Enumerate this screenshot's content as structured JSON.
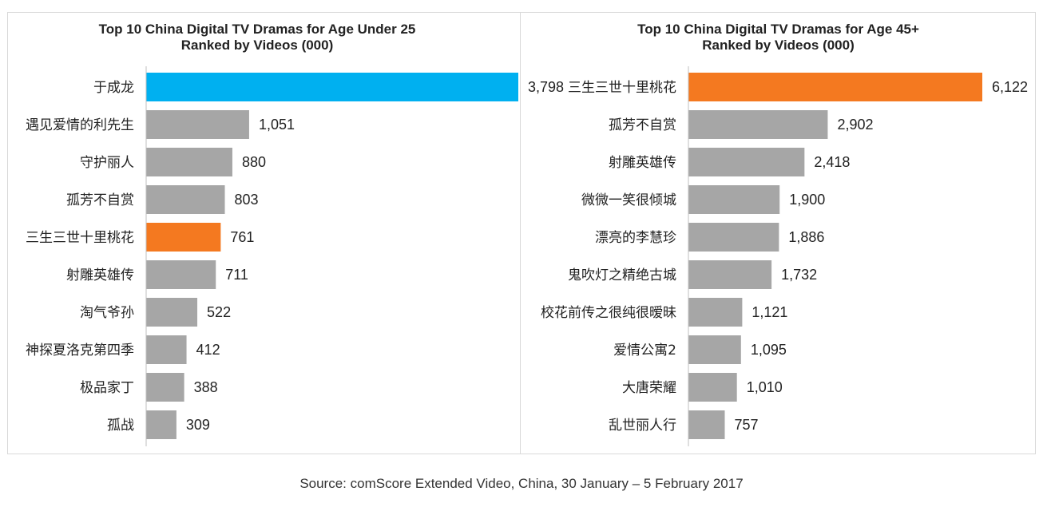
{
  "colors": {
    "highlight_blue": "#00b0f0",
    "highlight_orange": "#f47920",
    "default_bar": "#a6a6a6",
    "axis": "#bfbfbf"
  },
  "source": "Source: comScore Extended Video, China,  30 January – 5 February 2017",
  "chart_data": [
    {
      "type": "bar",
      "orientation": "horizontal",
      "title": "Top 10 China Digital TV Dramas for Age Under 25",
      "subtitle": "Ranked by Videos (000)",
      "categories": [
        "于成龙",
        "遇见爱情的利先生",
        "守护丽人",
        "孤芳不自赏",
        "三生三世十里桃花",
        "射雕英雄传",
        "淘气爷孙",
        "神探夏洛克第四季",
        "极品家丁",
        "孤战"
      ],
      "values": [
        3798,
        1051,
        880,
        803,
        761,
        711,
        522,
        412,
        388,
        309
      ],
      "value_labels": [
        "3,798",
        "1,051",
        "880",
        "803",
        "761",
        "711",
        "522",
        "412",
        "388",
        "309"
      ],
      "bar_colors": [
        "#00b0f0",
        "#a6a6a6",
        "#a6a6a6",
        "#a6a6a6",
        "#f47920",
        "#a6a6a6",
        "#a6a6a6",
        "#a6a6a6",
        "#a6a6a6",
        "#a6a6a6"
      ],
      "xlim": [
        0,
        3798
      ],
      "grid": false,
      "legend": "none"
    },
    {
      "type": "bar",
      "orientation": "horizontal",
      "title": "Top 10 China Digital TV Dramas for Age 45+",
      "subtitle": "Ranked by Videos (000)",
      "categories": [
        "三生三世十里桃花",
        "孤芳不自赏",
        "射雕英雄传",
        "微微一笑很倾城",
        "漂亮的李慧珍",
        "鬼吹灯之精绝古城",
        "校花前传之很纯很暧昧",
        "爱情公寓2",
        "大唐荣耀",
        "乱世丽人行"
      ],
      "values": [
        6122,
        2902,
        2418,
        1900,
        1886,
        1732,
        1121,
        1095,
        1010,
        757
      ],
      "value_labels": [
        "6,122",
        "2,902",
        "2,418",
        "1,900",
        "1,886",
        "1,732",
        "1,121",
        "1,095",
        "1,010",
        "757"
      ],
      "bar_colors": [
        "#f47920",
        "#a6a6a6",
        "#a6a6a6",
        "#a6a6a6",
        "#a6a6a6",
        "#a6a6a6",
        "#a6a6a6",
        "#a6a6a6",
        "#a6a6a6",
        "#a6a6a6"
      ],
      "xlim": [
        0,
        6122
      ],
      "grid": false,
      "legend": "none"
    }
  ]
}
